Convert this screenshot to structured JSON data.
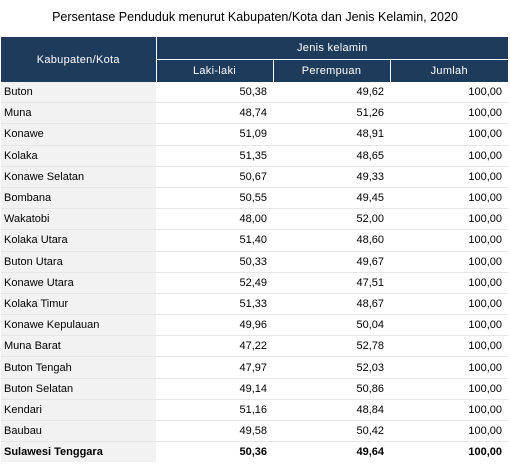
{
  "title": "Persentase Penduduk menurut Kabupaten/Kota dan Jenis Kelamin, 2020",
  "headers": {
    "region": "Kabupaten/Kota",
    "group": "Jenis kelamin",
    "male": "Laki-laki",
    "female": "Perempuan",
    "total": "Jumlah"
  },
  "rows": [
    {
      "name": "Buton",
      "male": "50,38",
      "female": "49,62",
      "total": "100,00"
    },
    {
      "name": "Muna",
      "male": "48,74",
      "female": "51,26",
      "total": "100,00"
    },
    {
      "name": "Konawe",
      "male": "51,09",
      "female": "48,91",
      "total": "100,00"
    },
    {
      "name": "Kolaka",
      "male": "51,35",
      "female": "48,65",
      "total": "100,00"
    },
    {
      "name": "Konawe Selatan",
      "male": "50,67",
      "female": "49,33",
      "total": "100,00"
    },
    {
      "name": "Bombana",
      "male": "50,55",
      "female": "49,45",
      "total": "100,00"
    },
    {
      "name": "Wakatobi",
      "male": "48,00",
      "female": "52,00",
      "total": "100,00"
    },
    {
      "name": "Kolaka Utara",
      "male": "51,40",
      "female": "48,60",
      "total": "100,00"
    },
    {
      "name": "Buton Utara",
      "male": "50,33",
      "female": "49,67",
      "total": "100,00"
    },
    {
      "name": "Konawe Utara",
      "male": "52,49",
      "female": "47,51",
      "total": "100,00"
    },
    {
      "name": "Kolaka Timur",
      "male": "51,33",
      "female": "48,67",
      "total": "100,00"
    },
    {
      "name": "Konawe Kepulauan",
      "male": "49,96",
      "female": "50,04",
      "total": "100,00"
    },
    {
      "name": "Muna Barat",
      "male": "47,22",
      "female": "52,78",
      "total": "100,00"
    },
    {
      "name": "Buton Tengah",
      "male": "47,97",
      "female": "52,03",
      "total": "100,00"
    },
    {
      "name": "Buton Selatan",
      "male": "49,14",
      "female": "50,86",
      "total": "100,00"
    },
    {
      "name": "Kendari",
      "male": "51,16",
      "female": "48,84",
      "total": "100,00"
    },
    {
      "name": "Baubau",
      "male": "49,58",
      "female": "50,42",
      "total": "100,00"
    }
  ],
  "total_row": {
    "name": "Sulawesi Tenggara",
    "male": "50,36",
    "female": "49,64",
    "total": "100,00"
  }
}
